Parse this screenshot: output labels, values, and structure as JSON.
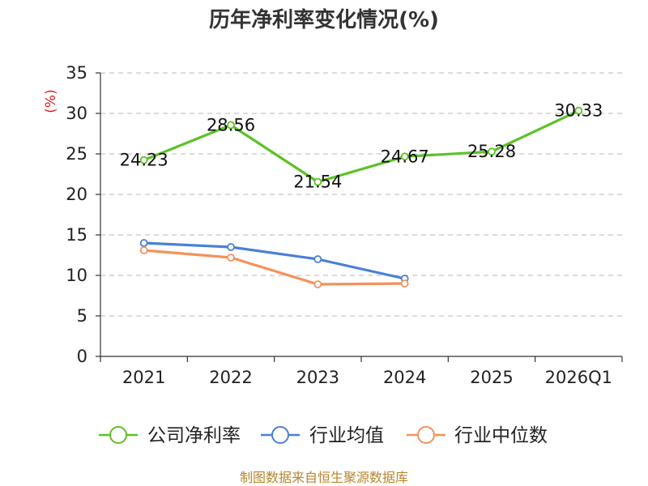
{
  "chart_data": {
    "type": "line",
    "title": "历年净利率变化情况(%)",
    "ylabel": "(%)",
    "xlabel": "",
    "categories": [
      "2021",
      "2022",
      "2023",
      "2024",
      "2025",
      "2026Q1"
    ],
    "ylim": [
      0,
      35
    ],
    "yticks": [
      0,
      5,
      10,
      15,
      20,
      25,
      30,
      35
    ],
    "grid": true,
    "legend_position": "bottom",
    "series": [
      {
        "name": "公司净利率",
        "color": "#5cc226",
        "values": [
          24.23,
          28.56,
          21.54,
          24.67,
          25.28,
          30.33
        ],
        "labels": [
          "24.23",
          "28.56",
          "21.54",
          "24.67",
          "25.28",
          "30.33"
        ],
        "show_labels": true
      },
      {
        "name": "行业均值",
        "color": "#4a7fd8",
        "values": [
          14.0,
          13.5,
          12.0,
          9.6,
          null,
          null
        ],
        "show_labels": false
      },
      {
        "name": "行业中位数",
        "color": "#f5915a",
        "values": [
          13.1,
          12.2,
          8.9,
          9.0,
          null,
          null
        ],
        "show_labels": false
      }
    ],
    "source": "制图数据来自恒生聚源数据库"
  }
}
